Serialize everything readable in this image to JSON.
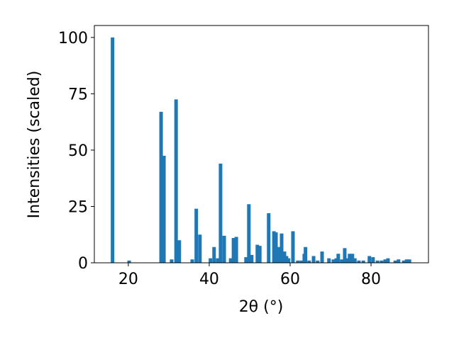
{
  "chart_data": {
    "type": "bar",
    "x_label": "2θ (°)",
    "y_label": "Intensities (scaled)",
    "x": [
      16.1,
      20.2,
      28.1,
      28.8,
      30.7,
      31.8,
      32.6,
      35.8,
      36.8,
      37.7,
      40.3,
      41.2,
      42.1,
      42.8,
      43.7,
      45.3,
      46.0,
      46.7,
      49.1,
      49.8,
      50.5,
      51.9,
      52.5,
      54.7,
      56.0,
      56.5,
      57.2,
      57.9,
      58.6,
      59.1,
      59.6,
      60.7,
      61.9,
      62.8,
      63.5,
      63.8,
      64.7,
      65.8,
      66.8,
      67.9,
      69.6,
      70.7,
      71.4,
      71.9,
      72.8,
      73.5,
      74.2,
      74.7,
      75.4,
      76.0,
      77.0,
      78.1,
      79.6,
      80.5,
      81.6,
      82.6,
      83.5,
      84.2,
      86.0,
      86.8,
      88.1,
      88.8,
      89.5
    ],
    "values": [
      100,
      1,
      67,
      47.5,
      1.5,
      72.5,
      10,
      1.5,
      24,
      12.5,
      2,
      7,
      2,
      44,
      12,
      2,
      11,
      11.5,
      2.5,
      26,
      3.5,
      8,
      7.5,
      22,
      14,
      13.5,
      7,
      13,
      5,
      3,
      2,
      14,
      1,
      1,
      4,
      7,
      1,
      3,
      1,
      5,
      2,
      1.5,
      2,
      4,
      1.5,
      6.5,
      2,
      4,
      4,
      2,
      1,
      1,
      3,
      2.5,
      1,
      1,
      1.5,
      2,
      1,
      1.5,
      1,
      1.5,
      1.5
    ],
    "color": "#1f77b4",
    "xlim": [
      11.6,
      94.2
    ],
    "xticks": [
      20,
      40,
      60,
      80
    ],
    "ylim": [
      0,
      105.3
    ],
    "yticks": [
      0,
      25,
      50,
      75,
      100
    ]
  }
}
